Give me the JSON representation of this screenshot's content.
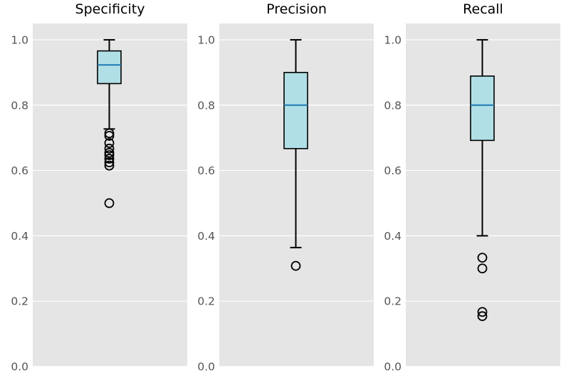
{
  "chart_data": [
    {
      "type": "box",
      "title": "Specificity",
      "ylim": [
        0.0,
        1.05
      ],
      "yticks": [
        "0.0",
        "0.2",
        "0.4",
        "0.6",
        "0.8",
        "1.0"
      ],
      "ytick_values": [
        0.0,
        0.2,
        0.4,
        0.6,
        0.8,
        1.0
      ],
      "grid": true,
      "box": {
        "whisker_low": 0.727,
        "q1": 0.866,
        "median": 0.923,
        "q3": 0.966,
        "whisker_high": 1.0
      },
      "outliers": [
        0.714,
        0.706,
        0.684,
        0.667,
        0.654,
        0.647,
        0.636,
        0.625,
        0.615,
        0.5
      ]
    },
    {
      "type": "box",
      "title": "Precision",
      "ylim": [
        0.0,
        1.05
      ],
      "yticks": [
        "0.0",
        "0.2",
        "0.4",
        "0.6",
        "0.8",
        "1.0"
      ],
      "ytick_values": [
        0.0,
        0.2,
        0.4,
        0.6,
        0.8,
        1.0
      ],
      "grid": true,
      "box": {
        "whisker_low": 0.364,
        "q1": 0.667,
        "median": 0.8,
        "q3": 0.9,
        "whisker_high": 1.0
      },
      "outliers": [
        0.308
      ]
    },
    {
      "type": "box",
      "title": "Recall",
      "ylim": [
        0.0,
        1.05
      ],
      "yticks": [
        "0.0",
        "0.2",
        "0.4",
        "0.6",
        "0.8",
        "1.0"
      ],
      "ytick_values": [
        0.0,
        0.2,
        0.4,
        0.6,
        0.8,
        1.0
      ],
      "grid": true,
      "box": {
        "whisker_low": 0.4,
        "q1": 0.692,
        "median": 0.8,
        "q3": 0.889,
        "whisker_high": 1.0
      },
      "outliers": [
        0.333,
        0.3,
        0.167,
        0.154
      ]
    }
  ],
  "colors": {
    "panel_bg": "#e5e5e5",
    "grid": "#ffffff",
    "box_fill": "#b0e0e6",
    "box_edge": "#000000",
    "median": "#1f77b4",
    "tick_label": "#555555",
    "title": "#000000"
  }
}
